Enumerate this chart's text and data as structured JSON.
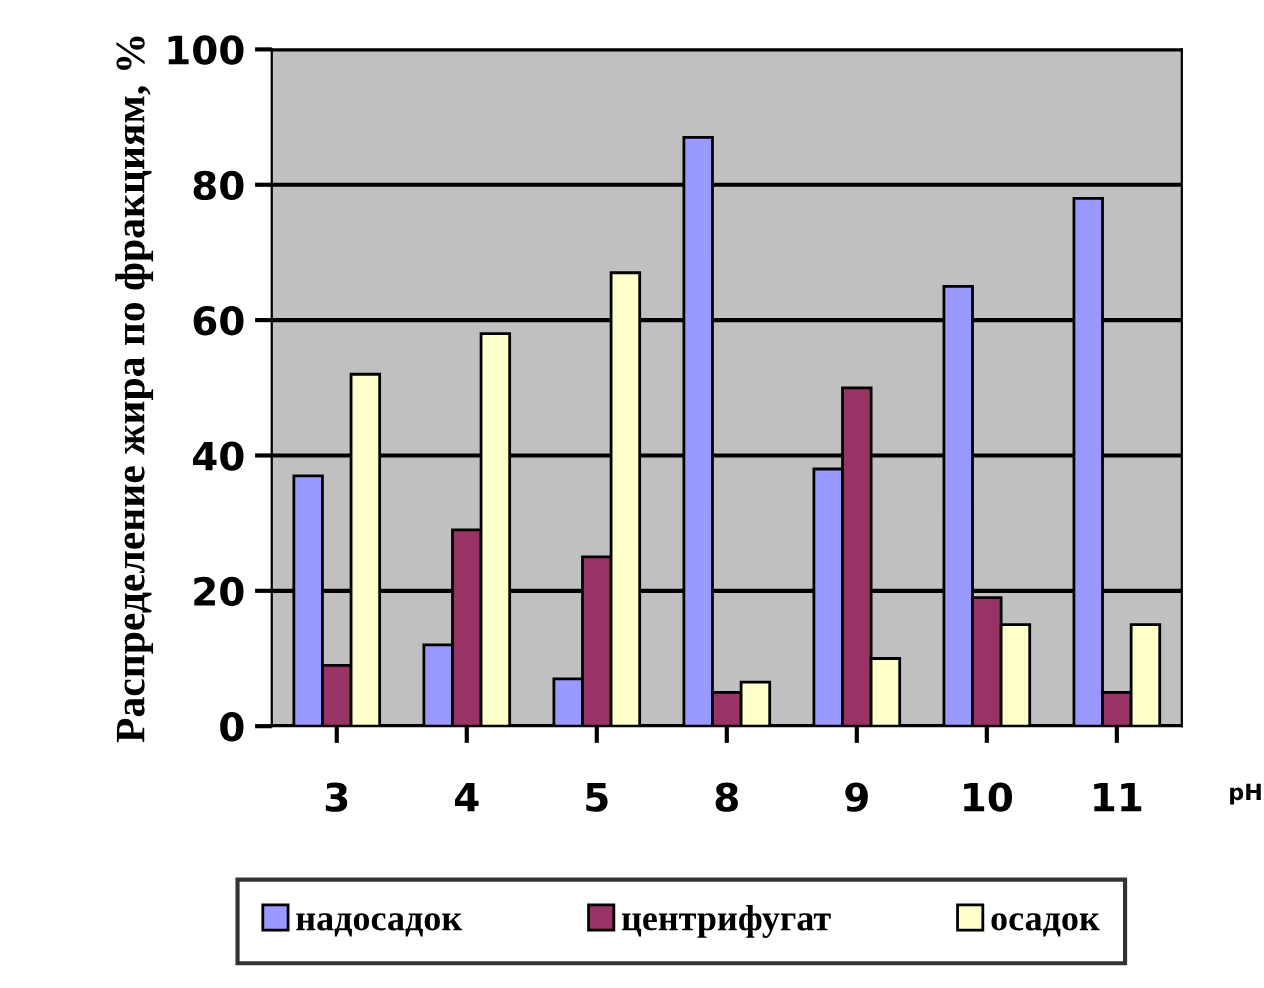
{
  "chart_data": {
    "type": "bar",
    "categories": [
      "3",
      "4",
      "5",
      "8",
      "9",
      "10",
      "11"
    ],
    "series": [
      {
        "name": "надосадок",
        "color": "#9999ff",
        "values": [
          37,
          12,
          7,
          87,
          38,
          65,
          78
        ]
      },
      {
        "name": "центрифугат",
        "color": "#993366",
        "values": [
          9,
          29,
          25,
          5,
          50,
          19,
          5
        ]
      },
      {
        "name": "осадок",
        "color": "#ffffcc",
        "values": [
          52,
          58,
          67,
          6.5,
          10,
          15,
          15
        ]
      }
    ],
    "ylabel": "Распределение жира по фракциям, %",
    "xlabel": "pH",
    "ylim": [
      0,
      100
    ],
    "yticks": [
      0,
      20,
      40,
      60,
      80,
      100
    ],
    "grid": "y",
    "legend": "bottom"
  }
}
